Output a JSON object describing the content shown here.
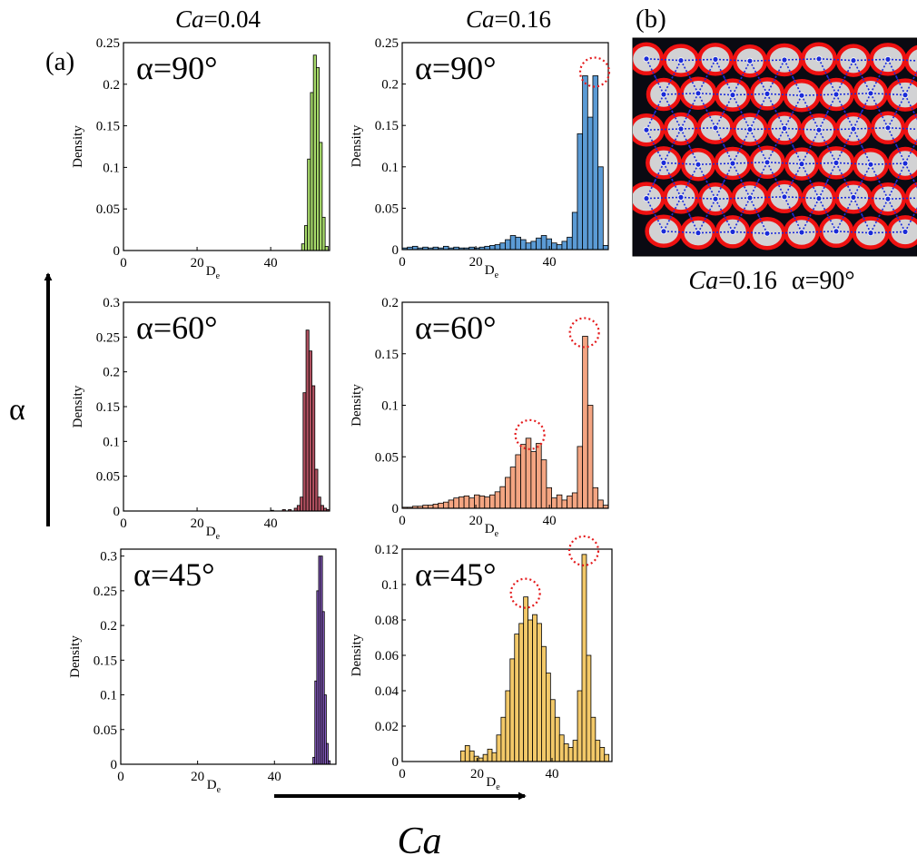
{
  "figure": {
    "panel_a_label": "(a)",
    "panel_b_label": "(b)",
    "column_headers": [
      {
        "var": "Ca",
        "value": "=0.04"
      },
      {
        "var": "Ca",
        "value": "=0.16"
      }
    ],
    "vertical_arrow_label": "α",
    "horizontal_arrow_label": "Ca",
    "panel_b_caption": {
      "var": "Ca",
      "value": "=0.16",
      "alpha": "α=90°"
    },
    "annotation_marker": "dotted red circle marks histogram peak"
  },
  "colors": {
    "green": "#a6d96a",
    "blue": "#5b9bd5",
    "maroon": "#b05060",
    "salmon": "#f4a582",
    "purple": "#8b5fc7",
    "yellow": "#f3c969",
    "marker_red": "#e41a1c",
    "droplet_red": "#ee1111",
    "network_blue": "#1a2bd8"
  },
  "chart_data": [
    {
      "id": "ca004_a90",
      "type": "bar",
      "title": "α=90°",
      "xlabel": "D",
      "xlabel_sub": "e",
      "ylabel": "Density",
      "xlim": [
        0,
        56
      ],
      "ylim": [
        0,
        0.25
      ],
      "xticks": [
        0,
        20,
        40
      ],
      "xtick_labels": [
        "0",
        "20",
        "40"
      ],
      "yticks": [
        0,
        0.05,
        0.1,
        0.15,
        0.2,
        0.25
      ],
      "ytick_labels": [
        "0",
        "0.05",
        "0.1",
        "0.15",
        "0.2",
        "0.25"
      ],
      "bin_width": 0.8,
      "color": "green",
      "bins": [
        [
          48.4,
          0.008
        ],
        [
          49.2,
          0.03
        ],
        [
          50.0,
          0.11
        ],
        [
          50.8,
          0.19
        ],
        [
          51.6,
          0.235
        ],
        [
          52.4,
          0.22
        ],
        [
          53.2,
          0.13
        ],
        [
          54.0,
          0.04
        ],
        [
          54.8,
          0.005
        ]
      ],
      "peaks": []
    },
    {
      "id": "ca016_a90",
      "type": "bar",
      "title": "α=90°",
      "xlabel": "D",
      "xlabel_sub": "e",
      "ylabel": "Density",
      "xlim": [
        0,
        56
      ],
      "ylim": [
        0,
        0.25
      ],
      "xticks": [
        0,
        20,
        40
      ],
      "xtick_labels": [
        "0",
        "20",
        "40"
      ],
      "yticks": [
        0,
        0.05,
        0.1,
        0.15,
        0.2,
        0.25
      ],
      "ytick_labels": [
        "0",
        "0.05",
        "0.1",
        "0.15",
        "0.2",
        "0.25"
      ],
      "bin_width": 1.4,
      "color": "blue",
      "bins": [
        [
          0.0,
          0.002
        ],
        [
          1.4,
          0.003
        ],
        [
          2.8,
          0.004
        ],
        [
          4.2,
          0.002
        ],
        [
          5.6,
          0.003
        ],
        [
          7.0,
          0.002
        ],
        [
          8.4,
          0.003
        ],
        [
          9.8,
          0.002
        ],
        [
          11.2,
          0.004
        ],
        [
          12.6,
          0.002
        ],
        [
          14.0,
          0.003
        ],
        [
          15.4,
          0.002
        ],
        [
          16.8,
          0.002
        ],
        [
          18.2,
          0.003
        ],
        [
          19.6,
          0.002
        ],
        [
          21.0,
          0.003
        ],
        [
          22.4,
          0.004
        ],
        [
          23.8,
          0.005
        ],
        [
          25.2,
          0.006
        ],
        [
          26.6,
          0.008
        ],
        [
          28.0,
          0.012
        ],
        [
          29.4,
          0.017
        ],
        [
          30.8,
          0.015
        ],
        [
          32.2,
          0.012
        ],
        [
          33.6,
          0.008
        ],
        [
          35.0,
          0.01
        ],
        [
          36.4,
          0.014
        ],
        [
          37.8,
          0.017
        ],
        [
          39.2,
          0.013
        ],
        [
          40.6,
          0.008
        ],
        [
          42.0,
          0.006
        ],
        [
          43.4,
          0.01
        ],
        [
          44.8,
          0.015
        ],
        [
          46.2,
          0.045
        ],
        [
          47.6,
          0.14
        ],
        [
          49.0,
          0.21
        ],
        [
          50.4,
          0.16
        ],
        [
          51.8,
          0.21
        ],
        [
          53.2,
          0.1
        ],
        [
          54.6,
          0.005
        ]
      ],
      "peaks": [
        [
          51.8,
          0.21
        ]
      ]
    },
    {
      "id": "ca004_a60",
      "type": "bar",
      "title": "α=60°",
      "xlabel": "D",
      "xlabel_sub": "e",
      "ylabel": "Density",
      "xlim": [
        0,
        56
      ],
      "ylim": [
        0,
        0.3
      ],
      "xticks": [
        0,
        20,
        40
      ],
      "xtick_labels": [
        "0",
        "20",
        "40"
      ],
      "yticks": [
        0,
        0.05,
        0.1,
        0.15,
        0.2,
        0.25,
        0.3
      ],
      "ytick_labels": [
        "0",
        "0.05",
        "0.1",
        "0.15",
        "0.2",
        "0.25",
        "0.3"
      ],
      "bin_width": 0.8,
      "color": "maroon",
      "bins": [
        [
          40.0,
          0.001
        ],
        [
          43.2,
          0.002
        ],
        [
          44.8,
          0.002
        ],
        [
          46.4,
          0.004
        ],
        [
          47.2,
          0.008
        ],
        [
          48.0,
          0.02
        ],
        [
          48.8,
          0.17
        ],
        [
          49.6,
          0.26
        ],
        [
          50.4,
          0.23
        ],
        [
          51.2,
          0.18
        ],
        [
          52.0,
          0.06
        ],
        [
          52.8,
          0.02
        ],
        [
          53.6,
          0.008
        ],
        [
          54.4,
          0.004
        ],
        [
          55.2,
          0.002
        ]
      ],
      "peaks": []
    },
    {
      "id": "ca016_a60",
      "type": "bar",
      "title": "α=60°",
      "xlabel": "D",
      "xlabel_sub": "e",
      "ylabel": "Density",
      "xlim": [
        0,
        56
      ],
      "ylim": [
        0,
        0.2
      ],
      "xticks": [
        0,
        20,
        40
      ],
      "xtick_labels": [
        "0",
        "20",
        "40"
      ],
      "yticks": [
        0,
        0.05,
        0.1,
        0.15,
        0.2
      ],
      "ytick_labels": [
        "0",
        "0.05",
        "0.1",
        "0.15",
        "0.2"
      ],
      "bin_width": 1.4,
      "color": "salmon",
      "bins": [
        [
          0.0,
          0.001
        ],
        [
          1.4,
          0.001
        ],
        [
          2.8,
          0.002
        ],
        [
          4.2,
          0.002
        ],
        [
          5.6,
          0.003
        ],
        [
          7.0,
          0.003
        ],
        [
          8.4,
          0.004
        ],
        [
          9.8,
          0.005
        ],
        [
          11.2,
          0.006
        ],
        [
          12.6,
          0.008
        ],
        [
          14.0,
          0.01
        ],
        [
          15.4,
          0.011
        ],
        [
          16.8,
          0.012
        ],
        [
          18.2,
          0.01
        ],
        [
          19.6,
          0.013
        ],
        [
          21.0,
          0.012
        ],
        [
          22.4,
          0.011
        ],
        [
          23.8,
          0.013
        ],
        [
          25.2,
          0.016
        ],
        [
          26.6,
          0.021
        ],
        [
          28.0,
          0.03
        ],
        [
          29.4,
          0.04
        ],
        [
          30.8,
          0.052
        ],
        [
          32.2,
          0.062
        ],
        [
          33.6,
          0.068
        ],
        [
          35.0,
          0.055
        ],
        [
          36.4,
          0.063
        ],
        [
          37.8,
          0.047
        ],
        [
          39.2,
          0.02
        ],
        [
          40.6,
          0.01
        ],
        [
          42.0,
          0.013
        ],
        [
          43.4,
          0.008
        ],
        [
          44.8,
          0.012
        ],
        [
          46.2,
          0.015
        ],
        [
          47.6,
          0.06
        ],
        [
          49.0,
          0.167
        ],
        [
          50.4,
          0.1
        ],
        [
          51.8,
          0.02
        ],
        [
          53.2,
          0.008
        ],
        [
          54.6,
          0.003
        ]
      ],
      "peaks": [
        [
          34.2,
          0.068
        ],
        [
          49.0,
          0.167
        ]
      ]
    },
    {
      "id": "ca004_a45",
      "type": "bar",
      "title": "α=45°",
      "xlabel": "D",
      "xlabel_sub": "e",
      "ylabel": "Density",
      "xlim": [
        0,
        56
      ],
      "ylim": [
        0,
        0.31
      ],
      "xticks": [
        0,
        20,
        40
      ],
      "xtick_labels": [
        "0",
        "20",
        "40"
      ],
      "yticks": [
        0,
        0.05,
        0.1,
        0.15,
        0.2,
        0.25,
        0.3
      ],
      "ytick_labels": [
        "0",
        "0.05",
        "0.1",
        "0.15",
        "0.2",
        "0.25",
        "0.3"
      ],
      "bin_width": 0.5,
      "color": "purple",
      "bins": [
        [
          50.0,
          0.01
        ],
        [
          50.5,
          0.12
        ],
        [
          51.0,
          0.25
        ],
        [
          51.5,
          0.3
        ],
        [
          52.0,
          0.3
        ],
        [
          52.5,
          0.22
        ],
        [
          53.0,
          0.1
        ],
        [
          53.5,
          0.03
        ],
        [
          54.0,
          0.005
        ]
      ],
      "peaks": []
    },
    {
      "id": "ca016_a45",
      "type": "bar",
      "title": "α=45°",
      "xlabel": "D",
      "xlabel_sub": "e",
      "ylabel": "Density",
      "xlim": [
        0,
        56
      ],
      "ylim": [
        0,
        0.12
      ],
      "xticks": [
        0,
        20,
        40
      ],
      "xtick_labels": [
        "0",
        "20",
        "40"
      ],
      "yticks": [
        0,
        0.02,
        0.04,
        0.06,
        0.08,
        0.1,
        0.12
      ],
      "ytick_labels": [
        "0",
        "0.02",
        "0.04",
        "0.06",
        "0.08",
        "0.1",
        "0.12"
      ],
      "bin_width": 1.2,
      "color": "yellow",
      "bins": [
        [
          15.6,
          0.006
        ],
        [
          16.8,
          0.009
        ],
        [
          18.0,
          0.006
        ],
        [
          19.2,
          0.003
        ],
        [
          20.4,
          0.002
        ],
        [
          21.6,
          0.004
        ],
        [
          22.8,
          0.007
        ],
        [
          24.0,
          0.005
        ],
        [
          25.2,
          0.015
        ],
        [
          26.4,
          0.025
        ],
        [
          27.6,
          0.04
        ],
        [
          28.8,
          0.058
        ],
        [
          30.0,
          0.072
        ],
        [
          31.2,
          0.078
        ],
        [
          32.4,
          0.093
        ],
        [
          33.6,
          0.08
        ],
        [
          34.8,
          0.083
        ],
        [
          36.0,
          0.078
        ],
        [
          37.2,
          0.065
        ],
        [
          38.4,
          0.05
        ],
        [
          39.6,
          0.035
        ],
        [
          40.8,
          0.025
        ],
        [
          42.0,
          0.015
        ],
        [
          43.2,
          0.01
        ],
        [
          44.4,
          0.008
        ],
        [
          45.6,
          0.012
        ],
        [
          46.8,
          0.04
        ],
        [
          48.0,
          0.117
        ],
        [
          49.2,
          0.06
        ],
        [
          50.4,
          0.025
        ],
        [
          51.6,
          0.012
        ],
        [
          52.8,
          0.008
        ],
        [
          54.0,
          0.004
        ]
      ],
      "peaks": [
        [
          32.4,
          0.093
        ],
        [
          48.0,
          0.117
        ]
      ]
    }
  ]
}
